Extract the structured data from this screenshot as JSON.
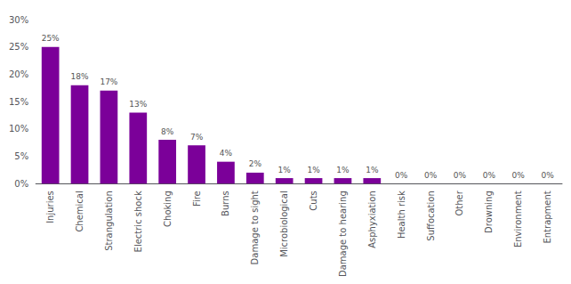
{
  "chart_data": {
    "type": "bar",
    "categories": [
      "Injuries",
      "Chemical",
      "Strangulation",
      "Electric shock",
      "Choking",
      "Fire",
      "Burns",
      "Damage to sight",
      "Microbiological",
      "Cuts",
      "Damage to hearing",
      "Asphyxiation",
      "Health risk",
      "Suffocation",
      "Other",
      "Drowning",
      "Environment",
      "Entrapment"
    ],
    "values": [
      25,
      18,
      17,
      13,
      8,
      7,
      4,
      2,
      1,
      1,
      1,
      1,
      0,
      0,
      0,
      0,
      0,
      0
    ],
    "value_labels": [
      "25%",
      "18%",
      "17%",
      "13%",
      "8%",
      "7%",
      "4%",
      "2%",
      "1%",
      "1%",
      "1%",
      "1%",
      "0%",
      "0%",
      "0%",
      "0%",
      "0%",
      "0%"
    ],
    "color": "#7B0099",
    "ylim": [
      0,
      30
    ],
    "yticks": [
      {
        "value": 0,
        "label": "0%"
      },
      {
        "value": 5,
        "label": "5%"
      },
      {
        "value": 10,
        "label": "10%"
      },
      {
        "value": 15,
        "label": "15%"
      },
      {
        "value": 20,
        "label": "20%"
      },
      {
        "value": 25,
        "label": "25%"
      },
      {
        "value": 30,
        "label": "30%"
      }
    ],
    "grid": false,
    "data_labels": true
  }
}
